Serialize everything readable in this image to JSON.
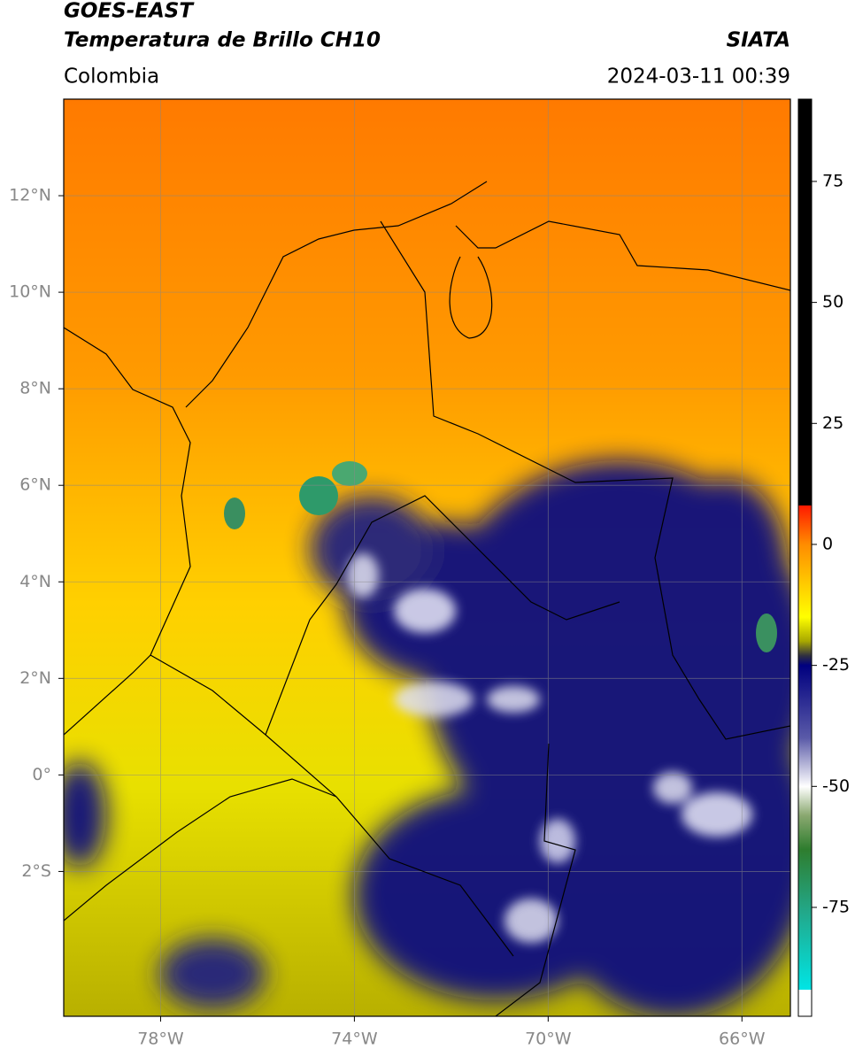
{
  "header": {
    "title": "GOES-EAST",
    "subtitle": "Temperatura de Brillo CH10",
    "source": "SIATA",
    "region": "Colombia",
    "timestamp": "2024-03-11 00:39"
  },
  "map": {
    "type": "map",
    "xlim": [
      -80,
      -65
    ],
    "ylim": [
      -5,
      14
    ],
    "grid": true,
    "xticks": [
      {
        "value": -78,
        "label": "78°W"
      },
      {
        "value": -74,
        "label": "74°W"
      },
      {
        "value": -70,
        "label": "70°W"
      },
      {
        "value": -66,
        "label": "66°W"
      }
    ],
    "yticks": [
      {
        "value": 12,
        "label": "12°N"
      },
      {
        "value": 10,
        "label": "10°N"
      },
      {
        "value": 8,
        "label": "8°N"
      },
      {
        "value": 6,
        "label": "6°N"
      },
      {
        "value": 4,
        "label": "4°N"
      },
      {
        "value": 2,
        "label": "2°N"
      },
      {
        "value": 0,
        "label": "0°"
      },
      {
        "value": -2,
        "label": "2°S"
      }
    ]
  },
  "colorbar": {
    "lim": [
      -97.5,
      92
    ],
    "ticks": [
      75,
      50,
      25,
      0,
      -25,
      -50,
      -75
    ],
    "stops": [
      {
        "value": 92,
        "color": "#000000"
      },
      {
        "value": 8,
        "color": "#000000"
      },
      {
        "value": 8,
        "color": "#ff1a00"
      },
      {
        "value": 0,
        "color": "#ff8c00"
      },
      {
        "value": -15,
        "color": "#ffff00"
      },
      {
        "value": -20,
        "color": "#a8a800"
      },
      {
        "value": -23,
        "color": "#303040"
      },
      {
        "value": -25,
        "color": "#00007f"
      },
      {
        "value": -40,
        "color": "#5a5aa8"
      },
      {
        "value": -50,
        "color": "#ffffff"
      },
      {
        "value": -56,
        "color": "#8aa870"
      },
      {
        "value": -63,
        "color": "#2e7d2e"
      },
      {
        "value": -76,
        "color": "#22a88a"
      },
      {
        "value": -92,
        "color": "#00e5e5"
      },
      {
        "value": -92,
        "color": "#ffffff"
      },
      {
        "value": -97.5,
        "color": "#ffffff"
      }
    ]
  }
}
